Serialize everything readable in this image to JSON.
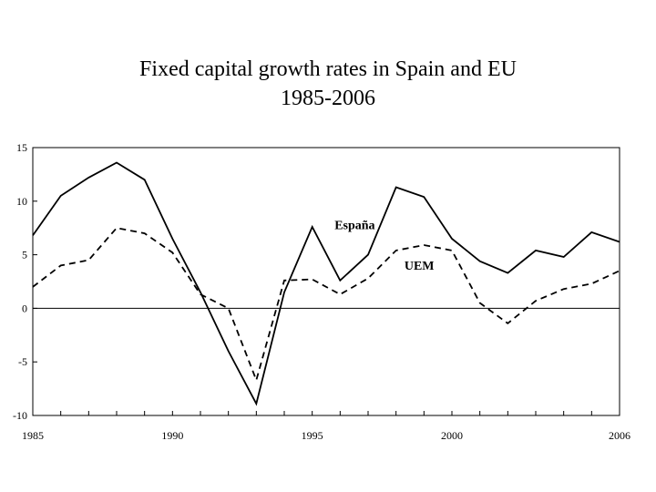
{
  "title": "Fixed capital growth rates in Spain and EU",
  "subtitle": "1985-2006",
  "chart_data": {
    "type": "line",
    "title": "Fixed capital growth rates in Spain and EU",
    "subtitle": "1985-2006",
    "xlabel": "",
    "ylabel": "",
    "xlim": [
      1985,
      2006
    ],
    "ylim": [
      -10,
      15
    ],
    "x_ticks": [
      1985,
      1990,
      1995,
      2000,
      2006
    ],
    "y_ticks": [
      15,
      10,
      5,
      0,
      -5,
      -10
    ],
    "grid": false,
    "zero_line": true,
    "x": [
      1985,
      1986,
      1987,
      1988,
      1989,
      1990,
      1991,
      1992,
      1993,
      1994,
      1995,
      1996,
      1997,
      1998,
      1999,
      2000,
      2001,
      2002,
      2003,
      2004,
      2005,
      2006
    ],
    "series": [
      {
        "name": "España",
        "style": "solid",
        "color": "#000000",
        "values": [
          6.8,
          10.5,
          12.2,
          13.6,
          12.0,
          6.5,
          1.5,
          -4.0,
          -8.9,
          1.5,
          7.6,
          2.6,
          5.0,
          11.3,
          10.4,
          6.5,
          4.4,
          3.3,
          5.4,
          4.8,
          7.1,
          6.2
        ]
      },
      {
        "name": "UEM",
        "style": "dashed",
        "color": "#000000",
        "values": [
          2.0,
          4.0,
          4.5,
          7.5,
          7.0,
          5.2,
          1.3,
          0.0,
          -6.7,
          2.6,
          2.7,
          1.3,
          2.8,
          5.4,
          5.9,
          5.4,
          0.5,
          -1.4,
          0.7,
          1.8,
          2.3,
          3.5
        ]
      }
    ]
  }
}
